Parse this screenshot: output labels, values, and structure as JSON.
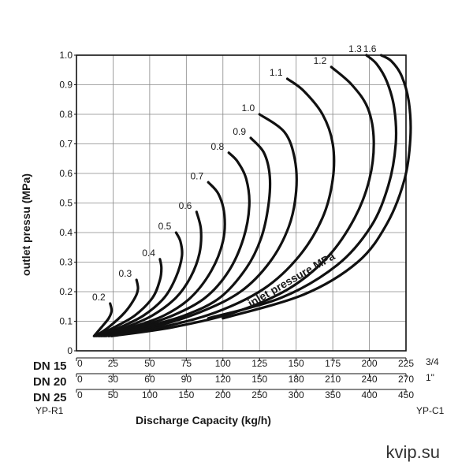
{
  "chart_data": {
    "type": "line",
    "ylabel": "outlet pressu (MPa)",
    "xlabel": "Discharge Capacity  (kg/h)",
    "ylim": [
      0,
      1.0
    ],
    "yticks": [
      "0",
      "0.1",
      "0.2",
      "0.3",
      "0.4",
      "0.5",
      "0.6",
      "0.7",
      "0.8",
      "0.9",
      "1.0"
    ],
    "grid": true,
    "x_scales": [
      {
        "name": "DN 15",
        "end_label": "3/4",
        "max": 225,
        "ticks": [
          "0",
          "25",
          "50",
          "75",
          "100",
          "125",
          "150",
          "175",
          "200",
          "225"
        ]
      },
      {
        "name": "DN 20",
        "end_label": "1\"",
        "max": 270,
        "ticks": [
          "0",
          "30",
          "60",
          "90",
          "120",
          "150",
          "180",
          "210",
          "240",
          "270"
        ]
      },
      {
        "name": "DN 25",
        "end_label": "",
        "max": 450,
        "ticks": [
          "0",
          "50",
          "100",
          "150",
          "200",
          "250",
          "300",
          "350",
          "400",
          "450"
        ]
      }
    ],
    "left_model": "YP-R1",
    "right_model": "YP-C1",
    "annotation": "inlet pressure MPa",
    "series": [
      {
        "name": "0.2",
        "points": [
          [
            12,
            0.05
          ],
          [
            18,
            0.085
          ],
          [
            22,
            0.11
          ],
          [
            24,
            0.135
          ],
          [
            23,
            0.16
          ]
        ]
      },
      {
        "name": "0.3",
        "points": [
          [
            13,
            0.05
          ],
          [
            22,
            0.08
          ],
          [
            33,
            0.13
          ],
          [
            40,
            0.18
          ],
          [
            42,
            0.21
          ],
          [
            41,
            0.24
          ]
        ]
      },
      {
        "name": "0.4",
        "points": [
          [
            14,
            0.05
          ],
          [
            26,
            0.08
          ],
          [
            40,
            0.12
          ],
          [
            52,
            0.18
          ],
          [
            57,
            0.24
          ],
          [
            58,
            0.28
          ],
          [
            57,
            0.31
          ]
        ]
      },
      {
        "name": "0.5",
        "points": [
          [
            15,
            0.05
          ],
          [
            30,
            0.08
          ],
          [
            46,
            0.12
          ],
          [
            60,
            0.18
          ],
          [
            68,
            0.25
          ],
          [
            72,
            0.32
          ],
          [
            71,
            0.37
          ],
          [
            68,
            0.4
          ]
        ]
      },
      {
        "name": "0.6",
        "points": [
          [
            16,
            0.05
          ],
          [
            34,
            0.08
          ],
          [
            52,
            0.12
          ],
          [
            68,
            0.18
          ],
          [
            78,
            0.25
          ],
          [
            84,
            0.33
          ],
          [
            85,
            0.41
          ],
          [
            82,
            0.47
          ]
        ]
      },
      {
        "name": "0.7",
        "points": [
          [
            17,
            0.05
          ],
          [
            38,
            0.08
          ],
          [
            60,
            0.12
          ],
          [
            78,
            0.18
          ],
          [
            92,
            0.27
          ],
          [
            100,
            0.37
          ],
          [
            101,
            0.46
          ],
          [
            97,
            0.53
          ],
          [
            90,
            0.57
          ]
        ]
      },
      {
        "name": "0.8",
        "points": [
          [
            18,
            0.05
          ],
          [
            42,
            0.08
          ],
          [
            66,
            0.12
          ],
          [
            88,
            0.18
          ],
          [
            104,
            0.27
          ],
          [
            114,
            0.38
          ],
          [
            118,
            0.49
          ],
          [
            116,
            0.58
          ],
          [
            110,
            0.64
          ],
          [
            104,
            0.67
          ]
        ]
      },
      {
        "name": "0.9",
        "points": [
          [
            19,
            0.05
          ],
          [
            46,
            0.08
          ],
          [
            74,
            0.12
          ],
          [
            98,
            0.18
          ],
          [
            116,
            0.28
          ],
          [
            126,
            0.38
          ],
          [
            131,
            0.49
          ],
          [
            132,
            0.59
          ],
          [
            128,
            0.67
          ],
          [
            119,
            0.72
          ]
        ]
      },
      {
        "name": "1.0",
        "points": [
          [
            20,
            0.05
          ],
          [
            52,
            0.08
          ],
          [
            84,
            0.13
          ],
          [
            112,
            0.2
          ],
          [
            132,
            0.3
          ],
          [
            145,
            0.42
          ],
          [
            150,
            0.54
          ],
          [
            149,
            0.65
          ],
          [
            142,
            0.74
          ],
          [
            125,
            0.8
          ]
        ]
      },
      {
        "name": "1.1",
        "points": [
          [
            22,
            0.05
          ],
          [
            58,
            0.08
          ],
          [
            95,
            0.13
          ],
          [
            128,
            0.21
          ],
          [
            152,
            0.32
          ],
          [
            168,
            0.45
          ],
          [
            175,
            0.58
          ],
          [
            175,
            0.7
          ],
          [
            168,
            0.8
          ],
          [
            155,
            0.88
          ],
          [
            144,
            0.92
          ]
        ]
      },
      {
        "name": "1.2",
        "points": [
          [
            24,
            0.05
          ],
          [
            66,
            0.08
          ],
          [
            108,
            0.13
          ],
          [
            145,
            0.21
          ],
          [
            172,
            0.32
          ],
          [
            190,
            0.45
          ],
          [
            200,
            0.58
          ],
          [
            203,
            0.71
          ],
          [
            199,
            0.82
          ],
          [
            188,
            0.9
          ],
          [
            174,
            0.96
          ]
        ]
      },
      {
        "name": "1.3",
        "points": [
          [
            90,
            0.11
          ],
          [
            140,
            0.18
          ],
          [
            178,
            0.29
          ],
          [
            201,
            0.42
          ],
          [
            213,
            0.56
          ],
          [
            218,
            0.7
          ],
          [
            217,
            0.82
          ],
          [
            212,
            0.91
          ],
          [
            205,
            0.97
          ],
          [
            198,
            1.0
          ]
        ]
      },
      {
        "name": "1.6",
        "points": [
          [
            100,
            0.11
          ],
          [
            155,
            0.19
          ],
          [
            192,
            0.3
          ],
          [
            212,
            0.43
          ],
          [
            224,
            0.58
          ],
          [
            228,
            0.72
          ],
          [
            227,
            0.84
          ],
          [
            222,
            0.93
          ],
          [
            215,
            0.98
          ],
          [
            208,
            1.0
          ]
        ]
      }
    ]
  },
  "watermark": "kvip.su"
}
